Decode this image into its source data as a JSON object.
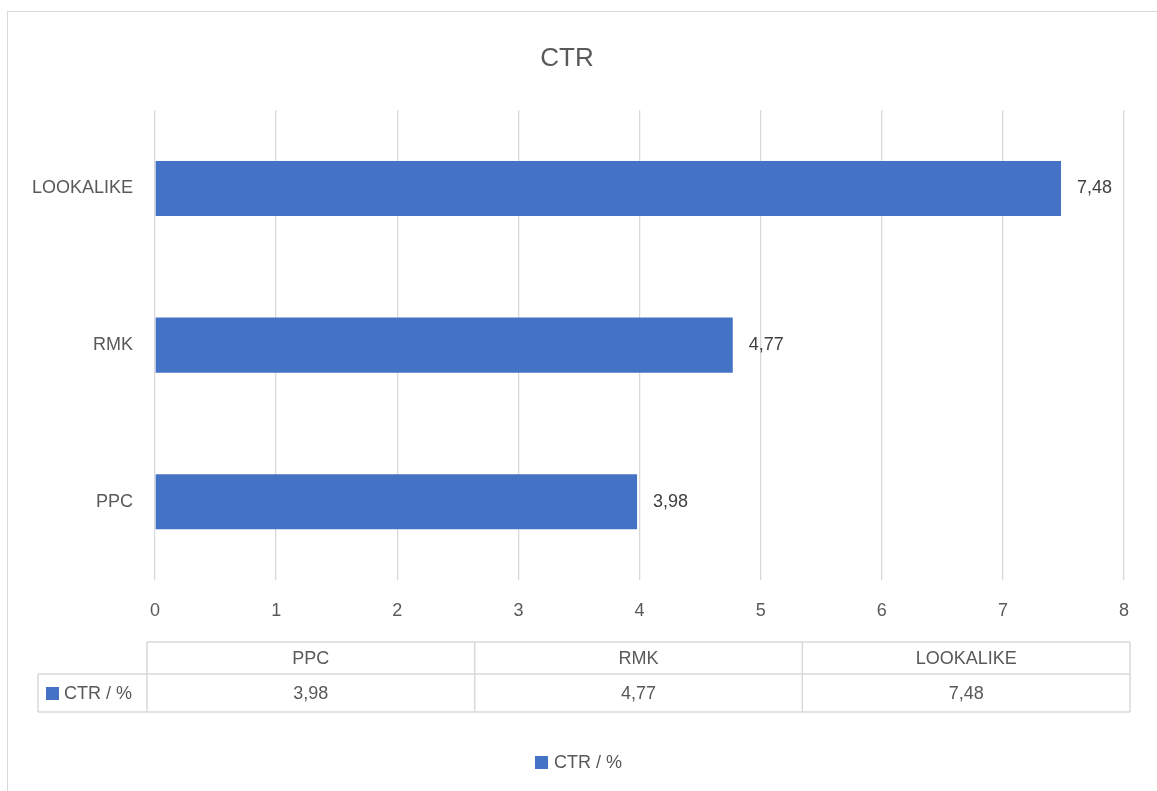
{
  "chart_data": {
    "type": "bar",
    "title": "CTR",
    "orientation": "horizontal",
    "categories": [
      "LOOKALIKE",
      "RMK",
      "PPC"
    ],
    "series": [
      {
        "name": "CTR / %",
        "color": "#4472c4",
        "values": [
          7.48,
          4.77,
          3.98
        ],
        "value_labels": [
          "7,48",
          "4,77",
          "3,98"
        ]
      }
    ],
    "xlim": [
      0,
      8
    ],
    "xticks": [
      0,
      1,
      2,
      3,
      4,
      5,
      6,
      7,
      8
    ],
    "grid": "x",
    "legend": "bottom"
  }
}
